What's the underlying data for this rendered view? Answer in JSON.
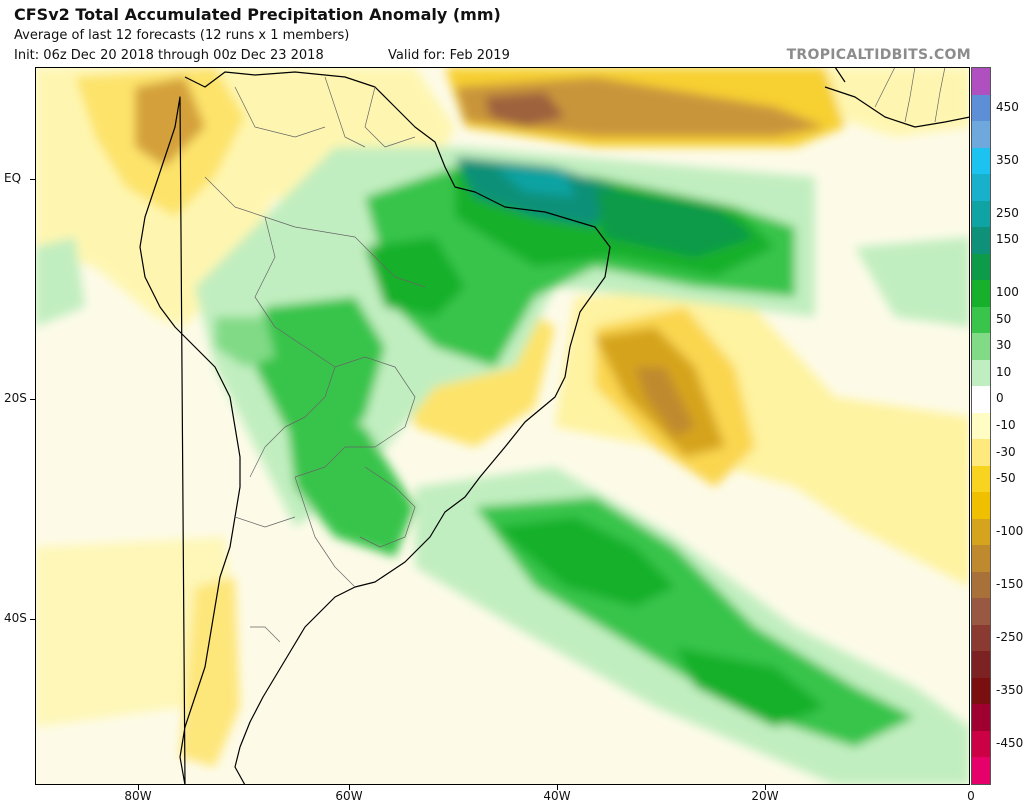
{
  "header": {
    "title": "CFSv2 Total Accumulated Precipitation Anomaly (mm)",
    "subtitle": "Average of last 12 forecasts (12 runs x 1 members)",
    "init": "Init: 06z Dec 20 2018 through 00z Dec 23 2018",
    "valid": "Valid for: Feb 2019",
    "brand": "TROPICALTIDBITS.COM"
  },
  "map": {
    "lat_labels": [
      "EQ",
      "20S",
      "40S"
    ],
    "lon_labels": [
      "80W",
      "60W",
      "40W",
      "20W",
      "0"
    ],
    "colors": {
      "land": "#ffffff",
      "coast": "#000000",
      "borders": "#555555"
    }
  },
  "colorbar": {
    "labels": [
      "450",
      "350",
      "250",
      "150",
      "100",
      "50",
      "30",
      "10",
      "0",
      "-10",
      "-30",
      "-50",
      "-100",
      "-150",
      "-250",
      "-350",
      "-450"
    ],
    "colors": [
      "#b04fbf",
      "#5c8fd6",
      "#6fa8dc",
      "#1cc3f0",
      "#19b0cc",
      "#10a3a3",
      "#0f9078",
      "#0d9a49",
      "#17b02a",
      "#39c44b",
      "#81da86",
      "#c1eec0",
      "#ffffff",
      "#fffcc4",
      "#fde97e",
      "#f8d420",
      "#f0c000",
      "#d6a41c",
      "#bf8a2e",
      "#a8713a",
      "#985841",
      "#8a3a30",
      "#7c2222",
      "#7a0f0f",
      "#a00030",
      "#cc0044",
      "#e6006a"
    ]
  }
}
